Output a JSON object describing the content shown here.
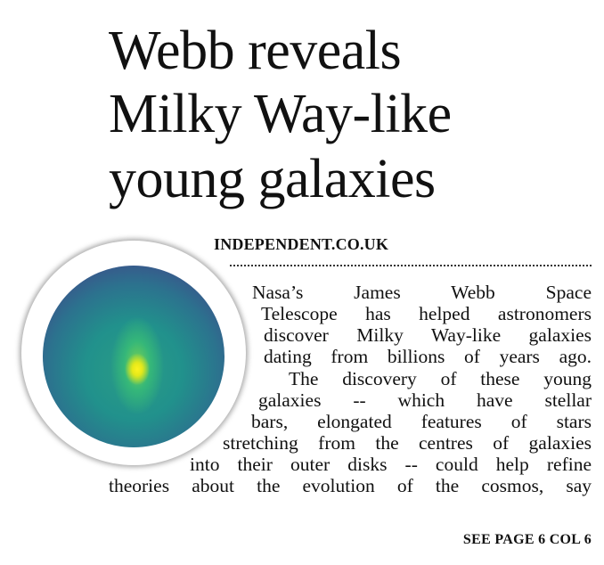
{
  "headline": [
    "Webb reveals",
    "Milky Way-like",
    "young galaxies"
  ],
  "source": "INDEPENDENT.CO.UK",
  "image": {
    "subject": "galaxy-image",
    "colors": [
      "#472d7b",
      "#21918c",
      "#35b779",
      "#fdf21f"
    ]
  },
  "body_lines": [
    "Nasa’s James Webb Space",
    "Telescope has helped astronomers",
    "discover Milky Way-like galaxies",
    "dating from billions of years ago.",
    "The discovery of these young",
    "galaxies -- which have stellar",
    "bars, elongated features of stars",
    "stretching from the centres of galaxies",
    "into their outer disks -- could help refine",
    "theories about the evolution of the cosmos, say"
  ],
  "continuation": "SEE PAGE 6 COL 6"
}
